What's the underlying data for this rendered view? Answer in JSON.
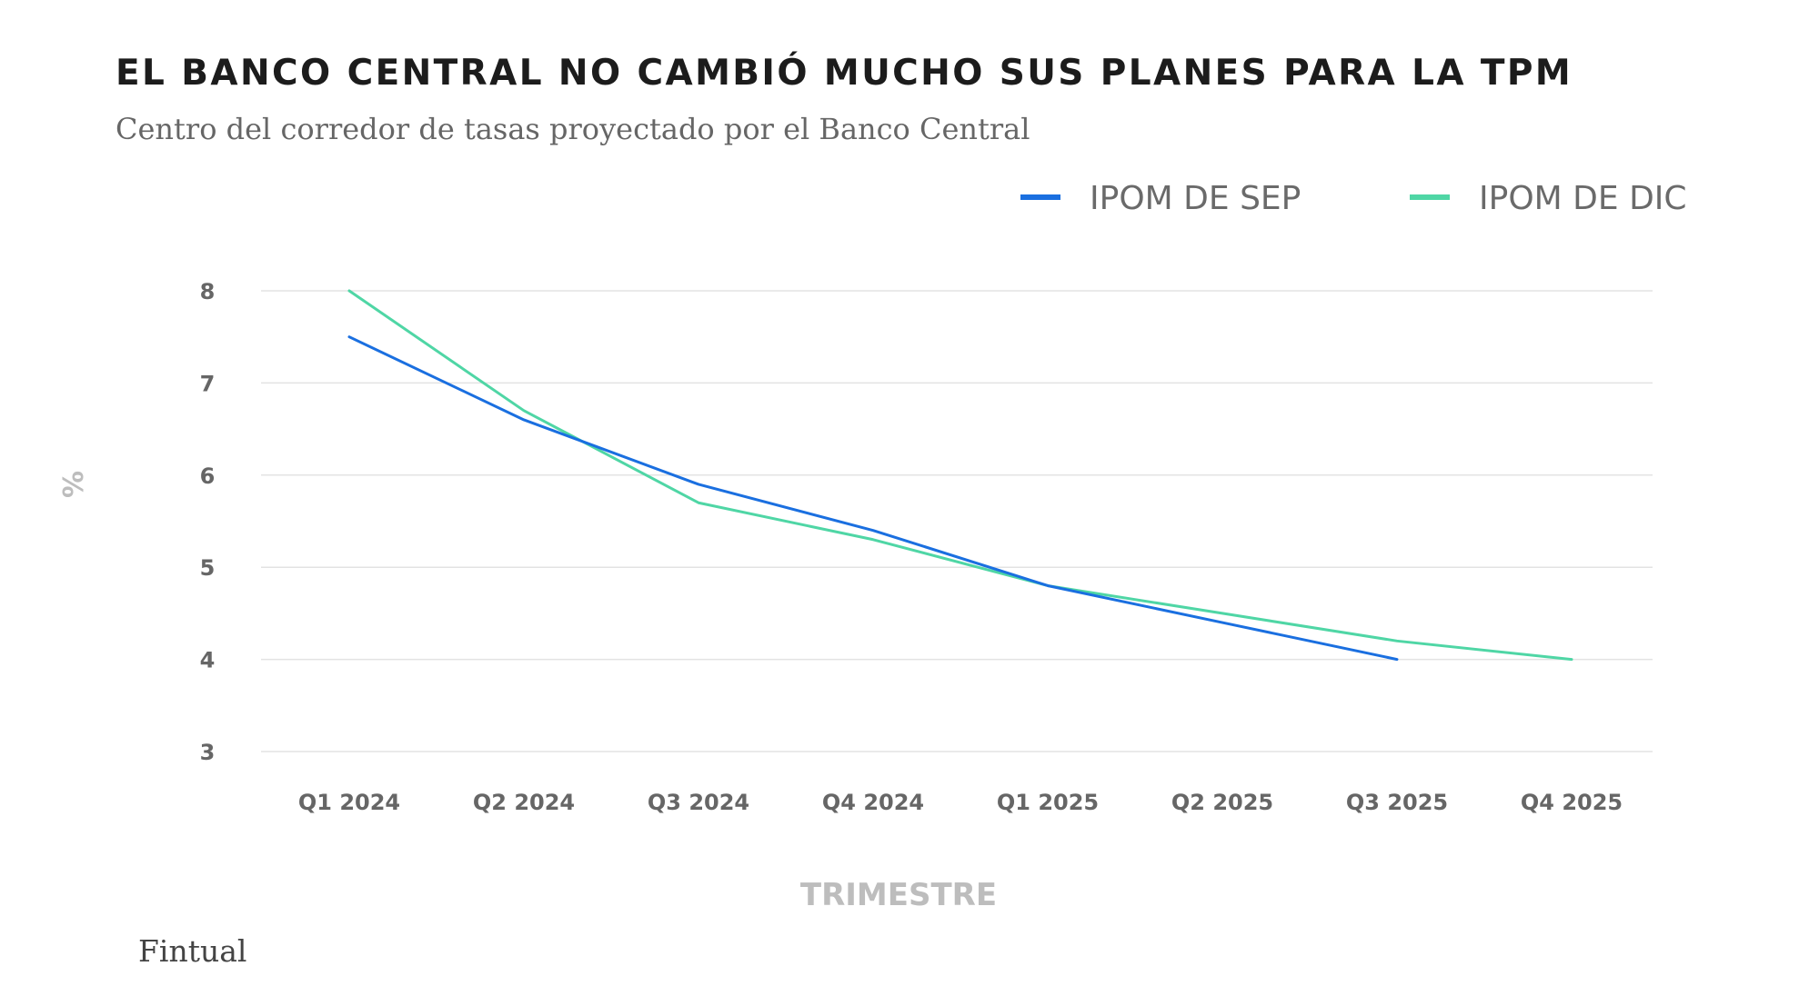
{
  "title": "EL BANCO CENTRAL NO CAMBIÓ MUCHO SUS PLANES PARA LA TPM",
  "subtitle": "Centro del corredor de tasas proyectado por el Banco Central",
  "source": "Fintual",
  "chart_data": {
    "type": "line",
    "title": "EL BANCO CENTRAL NO CAMBIÓ MUCHO SUS PLANES PARA LA TPM",
    "subtitle": "Centro del corredor de tasas proyectado por el Banco Central",
    "xlabel": "TRIMESTRE",
    "ylabel": "%",
    "categories": [
      "Q1 2024",
      "Q2 2024",
      "Q3 2024",
      "Q4 2024",
      "Q1 2025",
      "Q2 2025",
      "Q3 2025",
      "Q4 2025"
    ],
    "yticks": [
      3,
      4,
      5,
      6,
      7,
      8
    ],
    "ylim": [
      3,
      8
    ],
    "grid": true,
    "legend_position": "top-right",
    "series": [
      {
        "name": "IPOM DE SEP",
        "color": "#1a6fe0",
        "values": [
          7.5,
          6.6,
          5.9,
          5.4,
          4.8,
          4.4,
          4.0,
          null
        ]
      },
      {
        "name": "IPOM DE DIC",
        "color": "#4fd6a5",
        "values": [
          8.0,
          6.7,
          5.7,
          5.3,
          4.8,
          4.5,
          4.2,
          4.0
        ]
      }
    ]
  }
}
